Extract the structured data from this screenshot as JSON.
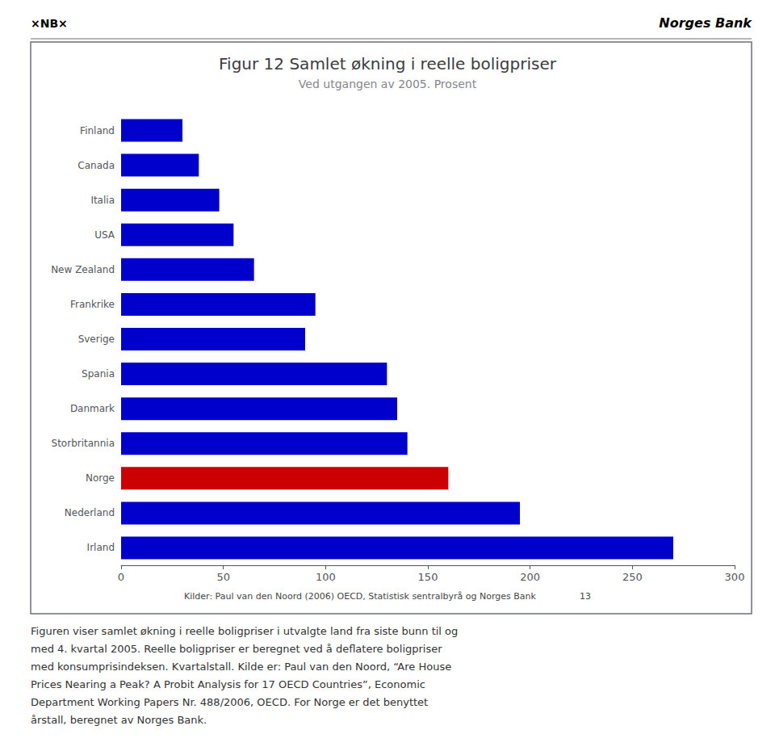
{
  "chart_data": {
    "type": "bar",
    "orientation": "horizontal",
    "title": "Figur 12 Samlet økning i reelle boligpriser",
    "subtitle": "Ved utgangen av 2005. Prosent",
    "categories": [
      "Irland",
      "Nederland",
      "Norge",
      "Storbritannia",
      "Danmark",
      "Spania",
      "Sverige",
      "Frankrike",
      "New Zealand",
      "USA",
      "Italia",
      "Canada",
      "Finland"
    ],
    "values": [
      270,
      195,
      160,
      140,
      135,
      130,
      90,
      95,
      65,
      55,
      48,
      38,
      30
    ],
    "colors": [
      "#0000cc",
      "#0000cc",
      "#cc0000",
      "#0000cc",
      "#0000cc",
      "#0000cc",
      "#0000cc",
      "#0000cc",
      "#0000cc",
      "#0000cc",
      "#0000cc",
      "#0000cc",
      "#0000cc"
    ],
    "xlim": [
      0,
      300
    ],
    "xticks": [
      0,
      50,
      100,
      150,
      200,
      250,
      300
    ],
    "grid": false,
    "annotations": [
      "×NB×",
      "Norges Bank",
      "Kilder: Paul van den Noord (2006) OECD, Statistisk sentralbyrå og Norges Bank",
      "13",
      "Figuren viser samlet økning i reelle boligpriser i utvalgte land fra siste bunn til og",
      "med 4. kvartal 2005. Reelle boligpriser er beregnet ved å deflatere boligpriser",
      "med konsumprisindeksen. Kvartalstall. Kilde er: Paul van den Noord, “Are House",
      "Prices Nearing a Peak? A Probit Analysis for 17 OECD Countries”, Economic",
      "Department Working Papers Nr. 488/2006, OECD. For Norge er det benyttet",
      "årstall, beregnet av Norges Bank."
    ]
  }
}
